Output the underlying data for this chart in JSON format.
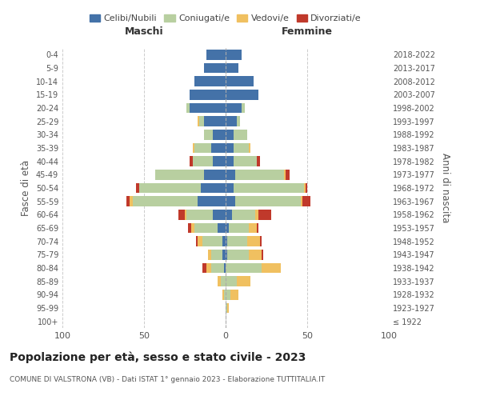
{
  "age_groups": [
    "100+",
    "95-99",
    "90-94",
    "85-89",
    "80-84",
    "75-79",
    "70-74",
    "65-69",
    "60-64",
    "55-59",
    "50-54",
    "45-49",
    "40-44",
    "35-39",
    "30-34",
    "25-29",
    "20-24",
    "15-19",
    "10-14",
    "5-9",
    "0-4"
  ],
  "birth_years": [
    "≤ 1922",
    "1923-1927",
    "1928-1932",
    "1933-1937",
    "1938-1942",
    "1943-1947",
    "1948-1952",
    "1953-1957",
    "1958-1962",
    "1963-1967",
    "1968-1972",
    "1973-1977",
    "1978-1982",
    "1983-1987",
    "1988-1992",
    "1993-1997",
    "1998-2002",
    "2003-2007",
    "2008-2012",
    "2013-2017",
    "2018-2022"
  ],
  "males": {
    "celibi": [
      0,
      0,
      0,
      0,
      1,
      2,
      2,
      5,
      8,
      17,
      15,
      13,
      8,
      9,
      8,
      13,
      22,
      22,
      19,
      13,
      12
    ],
    "coniugati": [
      0,
      0,
      1,
      3,
      8,
      7,
      12,
      14,
      16,
      40,
      38,
      30,
      12,
      10,
      5,
      3,
      2,
      0,
      0,
      0,
      0
    ],
    "vedovi": [
      0,
      0,
      1,
      2,
      3,
      2,
      3,
      2,
      1,
      2,
      0,
      0,
      0,
      1,
      0,
      1,
      0,
      0,
      0,
      0,
      0
    ],
    "divorziati": [
      0,
      0,
      0,
      0,
      2,
      0,
      1,
      2,
      4,
      2,
      2,
      0,
      2,
      0,
      0,
      0,
      0,
      0,
      0,
      0,
      0
    ]
  },
  "females": {
    "nubili": [
      0,
      0,
      0,
      0,
      0,
      1,
      1,
      2,
      4,
      6,
      5,
      6,
      5,
      5,
      5,
      7,
      10,
      20,
      17,
      8,
      10
    ],
    "coniugate": [
      0,
      1,
      3,
      7,
      22,
      13,
      12,
      12,
      14,
      40,
      43,
      30,
      14,
      9,
      8,
      2,
      2,
      0,
      0,
      0,
      0
    ],
    "vedove": [
      0,
      1,
      5,
      8,
      12,
      8,
      8,
      5,
      2,
      1,
      1,
      1,
      0,
      1,
      0,
      0,
      0,
      0,
      0,
      0,
      0
    ],
    "divorziate": [
      0,
      0,
      0,
      0,
      0,
      1,
      1,
      1,
      8,
      5,
      1,
      2,
      2,
      0,
      0,
      0,
      0,
      0,
      0,
      0,
      0
    ]
  },
  "colors": {
    "celibi": "#4472a8",
    "coniugati": "#b8cfa0",
    "vedovi": "#f0c060",
    "divorziati": "#c0392b"
  },
  "title": "Popolazione per età, sesso e stato civile - 2023",
  "subtitle": "COMUNE DI VALSTRONA (VB) - Dati ISTAT 1° gennaio 2023 - Elaborazione TUTTITALIA.IT",
  "xlabel_left": "Maschi",
  "xlabel_right": "Femmine",
  "ylabel_left": "Fasce di età",
  "ylabel_right": "Anni di nascita",
  "xlim": 100,
  "legend_labels": [
    "Celibi/Nubili",
    "Coniugati/e",
    "Vedovi/e",
    "Divorziati/e"
  ],
  "background_color": "#ffffff",
  "grid_color": "#cccccc"
}
